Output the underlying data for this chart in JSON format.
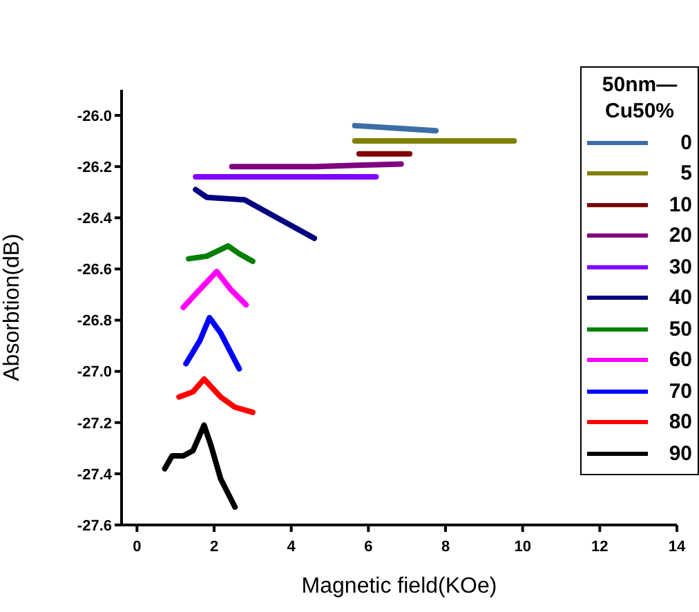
{
  "chart_data": {
    "type": "line",
    "xlabel": "Magnetic field(KOe)",
    "ylabel": "Absorbtion(dB)",
    "legend_title": "50nm—\nCu50%",
    "legend": "top right",
    "grid": false,
    "marker": "none",
    "line_style": "solid",
    "xlim": [
      -0.4,
      14
    ],
    "xticks": [
      0,
      2,
      4,
      6,
      8,
      10,
      12,
      14
    ],
    "ylim": [
      -27.6,
      -25.9
    ],
    "yticks": [
      {
        "value": -26,
        "label": "-26.0"
      },
      -26.2,
      -26.4,
      -26.6,
      -26.8,
      {
        "value": -27,
        "label": "-27.0"
      },
      -27.2,
      -27.4,
      -27.6
    ],
    "series": [
      {
        "name": "0",
        "color": "#3b6ea5",
        "x": [
          5.65,
          6.7,
          7.75
        ],
        "values": [
          -26.04,
          -26.05,
          -26.06
        ]
      },
      {
        "name": "5",
        "color": "#808000",
        "x": [
          5.65,
          7.7,
          9.78
        ],
        "values": [
          -26.1,
          -26.1,
          -26.1
        ]
      },
      {
        "name": "10",
        "color": "#800000",
        "x": [
          5.76,
          6.4,
          7.07
        ],
        "values": [
          -26.15,
          -26.15,
          -26.15
        ]
      },
      {
        "name": "20",
        "color": "#800080",
        "x": [
          2.46,
          4.6,
          6.85
        ],
        "values": [
          -26.2,
          -26.2,
          -26.19
        ]
      },
      {
        "name": "30",
        "color": "#8000ff",
        "x": [
          1.52,
          4,
          6.2
        ],
        "values": [
          -26.24,
          -26.24,
          -26.24
        ]
      },
      {
        "name": "40",
        "color": "#000080",
        "x": [
          1.52,
          1.81,
          2.79,
          3.51,
          4.6
        ],
        "values": [
          -26.29,
          -26.32,
          -26.33,
          -26.39,
          -26.48
        ]
      },
      {
        "name": "50",
        "color": "#008000",
        "x": [
          1.34,
          1.81,
          2.36,
          2.65,
          3.0
        ],
        "values": [
          -26.56,
          -26.55,
          -26.51,
          -26.54,
          -26.57
        ]
      },
      {
        "name": "60",
        "color": "#ff00ff",
        "x": [
          1.2,
          1.63,
          2.07,
          2.43,
          2.83
        ],
        "values": [
          -26.75,
          -26.68,
          -26.61,
          -26.68,
          -26.74
        ]
      },
      {
        "name": "70",
        "color": "#0000ff",
        "x": [
          1.27,
          1.63,
          1.88,
          2.17,
          2.65
        ],
        "values": [
          -26.97,
          -26.88,
          -26.79,
          -26.85,
          -26.99
        ]
      },
      {
        "name": "80",
        "color": "#ff0000",
        "x": [
          1.09,
          1.45,
          1.74,
          2.17,
          2.54,
          3.0
        ],
        "values": [
          -27.1,
          -27.08,
          -27.03,
          -27.1,
          -27.14,
          -27.16
        ]
      },
      {
        "name": "90",
        "color": "#000000",
        "x": [
          0.72,
          0.91,
          1.2,
          1.45,
          1.74,
          1.92,
          2.17,
          2.54
        ],
        "values": [
          -27.38,
          -27.33,
          -27.33,
          -27.31,
          -27.21,
          -27.29,
          -27.42,
          -27.53
        ]
      }
    ]
  }
}
